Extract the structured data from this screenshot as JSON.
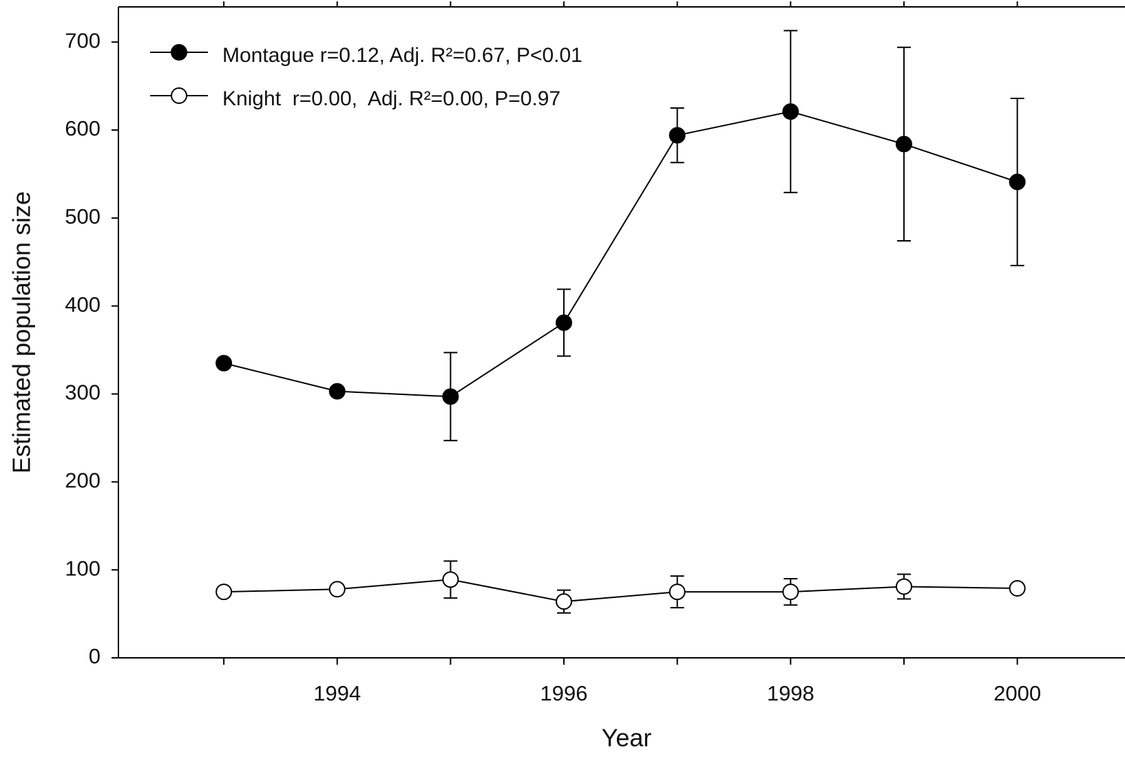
{
  "chart_data": {
    "type": "line",
    "x_label": "Year",
    "y_label": "Estimated population size",
    "x": [
      1993,
      1994,
      1995,
      1996,
      1997,
      1998,
      1999,
      2000
    ],
    "series": [
      {
        "name": "Montague r=0.12, Adj. R²=0.67, P<0.01",
        "color": "#000000",
        "marker": "filled",
        "values": [
          335,
          303,
          297,
          381,
          594,
          621,
          584,
          541
        ],
        "errors": [
          null,
          null,
          50,
          38,
          31,
          92,
          110,
          95
        ]
      },
      {
        "name": "Knight  r=0.00,  Adj. R²=0.00, P=0.97",
        "color": "#000000",
        "marker": "open",
        "values": [
          75,
          78,
          89,
          64,
          75,
          75,
          81,
          79
        ],
        "errors": [
          null,
          null,
          21,
          13,
          18,
          15,
          14,
          null
        ]
      }
    ],
    "xlim": [
      1992.07,
      2000.95
    ],
    "xticks": [
      1994,
      1996,
      1998,
      2000
    ],
    "xminor_ticks": [
      1993,
      1995,
      1997,
      1999
    ],
    "ylim": [
      0,
      740
    ],
    "yticks": [
      0,
      100,
      200,
      300,
      400,
      500,
      600,
      700
    ],
    "legend": "top-left",
    "grid": false
  }
}
